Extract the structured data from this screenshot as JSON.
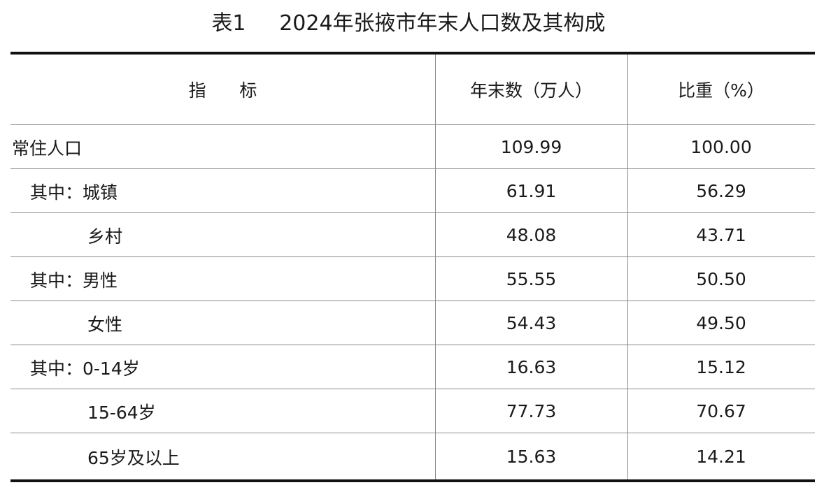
{
  "title": "表1     2024年张掖市年末人口数及其构成",
  "header": {
    "indicator": "指      标",
    "year_end": "年末数（万人）",
    "share": "比重（%）"
  },
  "rows": [
    {
      "label": "常住人口",
      "indent": 0,
      "value": "109.99",
      "share": "100.00"
    },
    {
      "label": "其中：城镇",
      "indent": 1,
      "value": "61.91",
      "share": "56.29"
    },
    {
      "label": "乡村",
      "indent": 2,
      "value": "48.08",
      "share": "43.71"
    },
    {
      "label": "其中：男性",
      "indent": 1,
      "value": "55.55",
      "share": "50.50"
    },
    {
      "label": "女性",
      "indent": 2,
      "value": "54.43",
      "share": "49.50"
    },
    {
      "label": "其中：0-14岁",
      "indent": 1,
      "value": "16.63",
      "share": "15.12"
    },
    {
      "label": "15-64岁",
      "indent": 2,
      "value": "77.73",
      "share": "70.67"
    },
    {
      "label": "65岁及以上",
      "indent": 2,
      "value": "15.63",
      "share": "14.21"
    }
  ]
}
